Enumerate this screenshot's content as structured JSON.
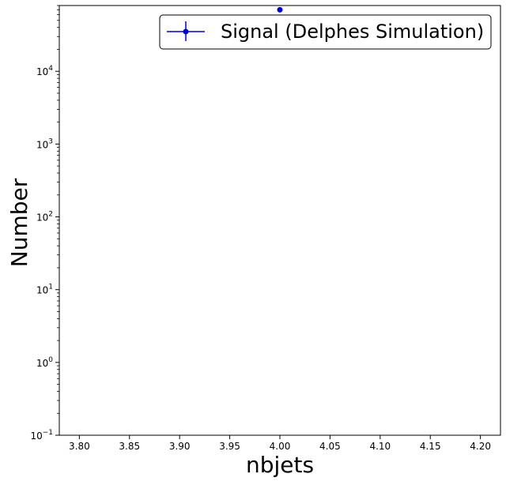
{
  "chart_data": {
    "type": "scatter",
    "title": "",
    "xlabel": "nbjets",
    "ylabel": "Number",
    "x_scale": "linear",
    "y_scale": "log",
    "xlim": [
      3.78,
      4.22
    ],
    "ylim": [
      0.1,
      80000
    ],
    "x_ticks": [
      3.8,
      3.85,
      3.9,
      3.95,
      4.0,
      4.05,
      4.1,
      4.15,
      4.2
    ],
    "x_tick_labels": [
      "3.80",
      "3.85",
      "3.90",
      "3.95",
      "4.00",
      "4.05",
      "4.10",
      "4.15",
      "4.20"
    ],
    "y_ticks": [
      0.1,
      1,
      10,
      100,
      1000,
      10000
    ],
    "y_tick_labels": [
      {
        "base": "10",
        "exp": "−1"
      },
      {
        "base": "10",
        "exp": "0"
      },
      {
        "base": "10",
        "exp": "1"
      },
      {
        "base": "10",
        "exp": "2"
      },
      {
        "base": "10",
        "exp": "3"
      },
      {
        "base": "10",
        "exp": "4"
      }
    ],
    "grid": false,
    "legend": {
      "placement": "top-right",
      "entries": [
        "Signal (Delphes Simulation)"
      ]
    },
    "series": [
      {
        "name": "Signal (Delphes Simulation)",
        "color": "#0000cc",
        "marker": "circle",
        "x": [
          4.0
        ],
        "y": [
          70000
        ]
      }
    ]
  }
}
